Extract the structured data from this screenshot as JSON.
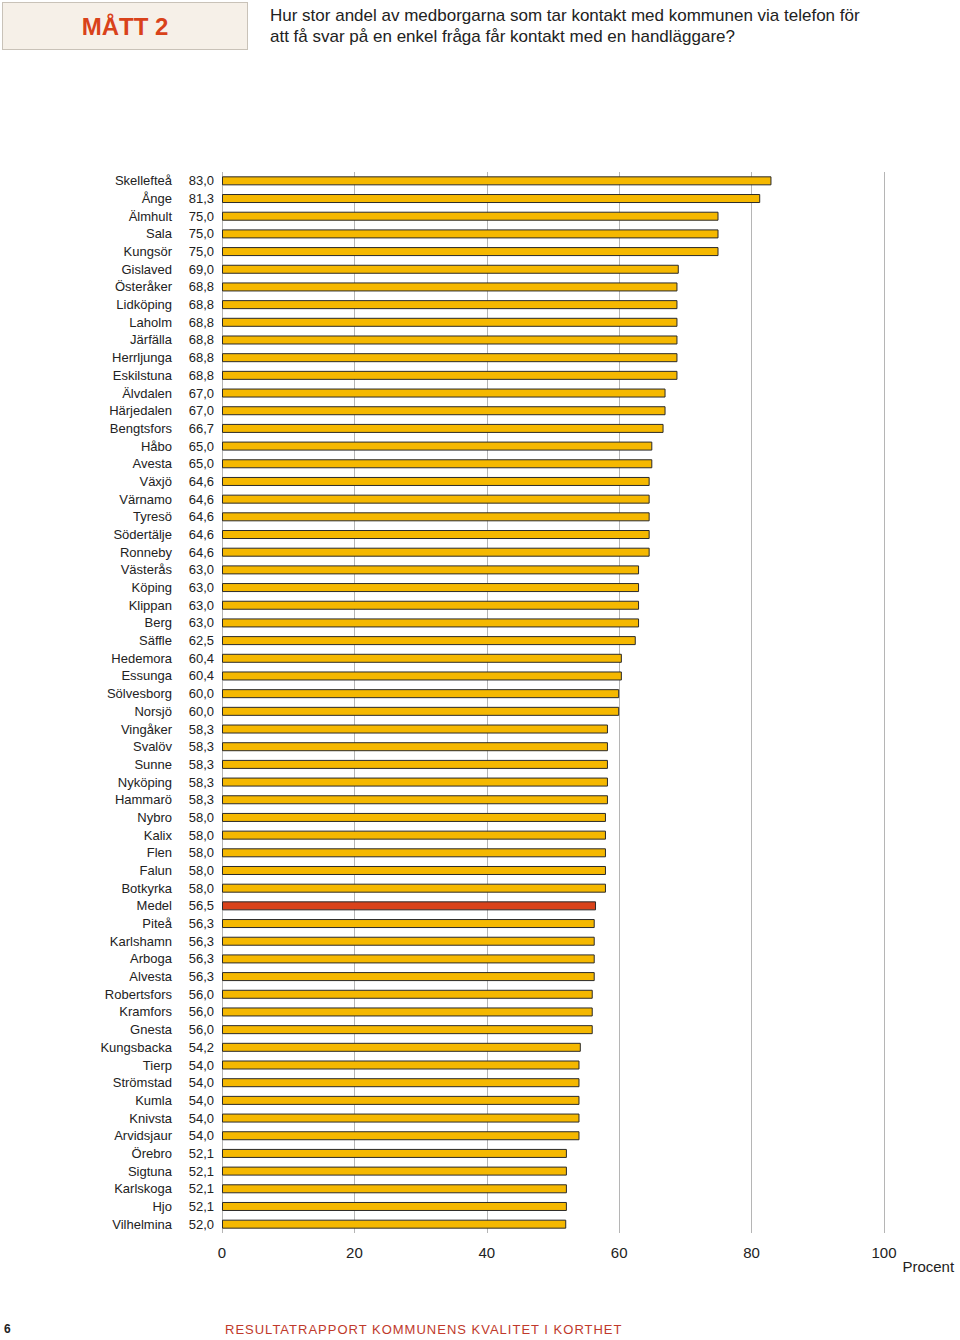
{
  "chart_data": {
    "type": "bar",
    "orientation": "horizontal",
    "badge": "MÅTT 2",
    "title": "Hur stor andel av medborgarna som tar kontakt med kommunen via telefon för att få svar på en enkel fråga får kontakt med en handläggare?",
    "x_label": "Procent",
    "page_number": "6",
    "footer": "RESULTATRAPPORT KOMMUNENS KVALITET I KORTHET",
    "categories": [
      "Skellefteå",
      "Ånge",
      "Älmhult",
      "Sala",
      "Kungsör",
      "Gislaved",
      "Österåker",
      "Lidköping",
      "Laholm",
      "Järfälla",
      "Herrljunga",
      "Eskilstuna",
      "Älvdalen",
      "Härjedalen",
      "Bengtsfors",
      "Håbo",
      "Avesta",
      "Växjö",
      "Värnamo",
      "Tyresö",
      "Södertälje",
      "Ronneby",
      "Västerås",
      "Köping",
      "Klippan",
      "Berg",
      "Säffle",
      "Hedemora",
      "Essunga",
      "Sölvesborg",
      "Norsjö",
      "Vingåker",
      "Svalöv",
      "Sunne",
      "Nyköping",
      "Hammarö",
      "Nybro",
      "Kalix",
      "Flen",
      "Falun",
      "Botkyrka",
      "Medel",
      "Piteå",
      "Karlshamn",
      "Arboga",
      "Alvesta",
      "Robertsfors",
      "Kramfors",
      "Gnesta",
      "Kungsbacka",
      "Tierp",
      "Strömstad",
      "Kumla",
      "Knivsta",
      "Arvidsjaur",
      "Örebro",
      "Sigtuna",
      "Karlskoga",
      "Hjo",
      "Vilhelmina"
    ],
    "values": [
      83.0,
      81.3,
      75.0,
      75.0,
      75.0,
      69.0,
      68.8,
      68.8,
      68.8,
      68.8,
      68.8,
      68.8,
      67.0,
      67.0,
      66.7,
      65.0,
      65.0,
      64.6,
      64.6,
      64.6,
      64.6,
      64.6,
      63.0,
      63.0,
      63.0,
      63.0,
      62.5,
      60.4,
      60.4,
      60.0,
      60.0,
      58.3,
      58.3,
      58.3,
      58.3,
      58.3,
      58.0,
      58.0,
      58.0,
      58.0,
      58.0,
      56.5,
      56.3,
      56.3,
      56.3,
      56.3,
      56.0,
      56.0,
      56.0,
      54.2,
      54.0,
      54.0,
      54.0,
      54.0,
      54.0,
      52.1,
      52.1,
      52.1,
      52.1,
      52.0
    ],
    "value_labels": [
      "83,0",
      "81,3",
      "75,0",
      "75,0",
      "75,0",
      "69,0",
      "68,8",
      "68,8",
      "68,8",
      "68,8",
      "68,8",
      "68,8",
      "67,0",
      "67,0",
      "66,7",
      "65,0",
      "65,0",
      "64,6",
      "64,6",
      "64,6",
      "64,6",
      "64,6",
      "63,0",
      "63,0",
      "63,0",
      "63,0",
      "62,5",
      "60,4",
      "60,4",
      "60,0",
      "60,0",
      "58,3",
      "58,3",
      "58,3",
      "58,3",
      "58,3",
      "58,0",
      "58,0",
      "58,0",
      "58,0",
      "58,0",
      "56,5",
      "56,3",
      "56,3",
      "56,3",
      "56,3",
      "56,0",
      "56,0",
      "56,0",
      "54,2",
      "54,0",
      "54,0",
      "54,0",
      "54,0",
      "54,0",
      "52,1",
      "52,1",
      "52,1",
      "52,1",
      "52,0"
    ],
    "colors": [
      "#f5b800",
      "#f5b800",
      "#f5b800",
      "#f5b800",
      "#f5b800",
      "#f5b800",
      "#f5b800",
      "#f5b800",
      "#f5b800",
      "#f5b800",
      "#f5b800",
      "#f5b800",
      "#f5b800",
      "#f5b800",
      "#f5b800",
      "#f5b800",
      "#f5b800",
      "#f5b800",
      "#f5b800",
      "#f5b800",
      "#f5b800",
      "#f5b800",
      "#f5b800",
      "#f5b800",
      "#f5b800",
      "#f5b800",
      "#f5b800",
      "#f5b800",
      "#f5b800",
      "#f5b800",
      "#f5b800",
      "#f5b800",
      "#f5b800",
      "#f5b800",
      "#f5b800",
      "#f5b800",
      "#f5b800",
      "#f5b800",
      "#f5b800",
      "#f5b800",
      "#f5b800",
      "#d9421a",
      "#f5b800",
      "#f5b800",
      "#f5b800",
      "#f5b800",
      "#f5b800",
      "#f5b800",
      "#f5b800",
      "#f5b800",
      "#f5b800",
      "#f5b800",
      "#f5b800",
      "#f5b800",
      "#f5b800",
      "#f5b800",
      "#f5b800",
      "#f5b800",
      "#f5b800",
      "#f5b800"
    ],
    "xlim": [
      0,
      100
    ],
    "xticks": [
      0,
      20,
      40,
      60,
      80,
      100
    ],
    "grid": true,
    "data_labels": true
  }
}
